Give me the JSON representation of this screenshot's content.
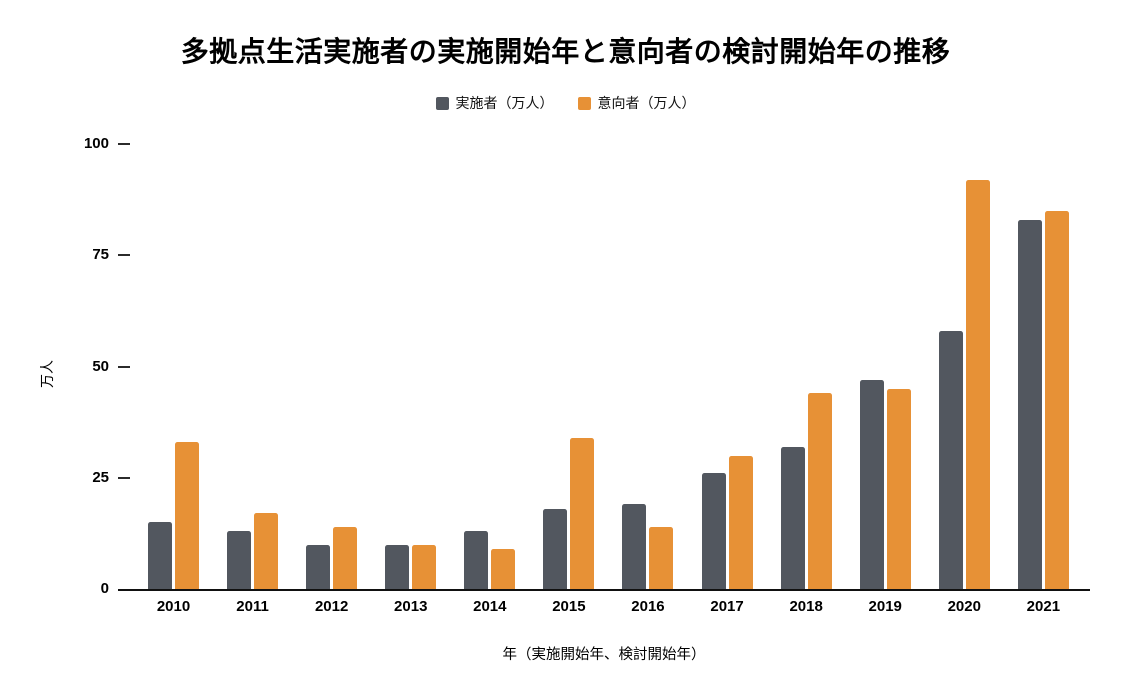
{
  "chart_data": {
    "type": "bar",
    "title": "多拠点生活実施者の実施開始年と意向者の検討開始年の推移",
    "categories": [
      "2010",
      "2011",
      "2012",
      "2013",
      "2014",
      "2015",
      "2016",
      "2017",
      "2018",
      "2019",
      "2020",
      "2021"
    ],
    "series": [
      {
        "name": "実施者（万人）",
        "color": "#52575F",
        "values": [
          15,
          13,
          10,
          10,
          13,
          18,
          19,
          26,
          32,
          47,
          58,
          83
        ]
      },
      {
        "name": "意向者（万人）",
        "color": "#E79136",
        "values": [
          33,
          17,
          14,
          10,
          9,
          34,
          14,
          30,
          44,
          45,
          92,
          85
        ]
      }
    ],
    "xlabel": "年（実施開始年、検討開始年）",
    "ylabel": "万人",
    "ylim": [
      0,
      100
    ],
    "yticks": [
      0,
      25,
      50,
      75,
      100
    ],
    "legend_position": "top",
    "grid": false,
    "background": "#FFFFFF",
    "axis_color": "#111111",
    "tick_color": "#2B2B2B"
  }
}
